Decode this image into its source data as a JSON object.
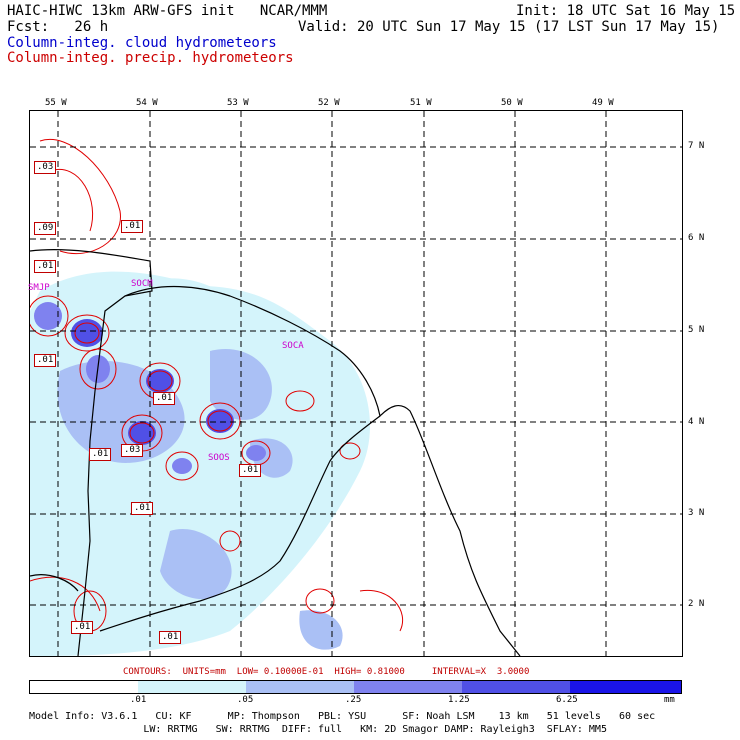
{
  "header": {
    "title_left": "HAIC-HIWC 13km ARW-GFS init   NCAR/MMM",
    "init": "Init: 18 UTC Sat 16 May 15",
    "fcst": "Fcst:   26 h",
    "valid": "Valid: 20 UTC Sun 17 May 15 (17 LST Sun 17 May 15)",
    "field1": "Column-integ. cloud hydrometeors",
    "field2": "Column-integ. precip. hydrometeors",
    "field1_color": "#0000cc",
    "field2_color": "#cc0000"
  },
  "map": {
    "lon_labels": [
      "55 W",
      "54 W",
      "53 W",
      "52 W",
      "51 W",
      "50 W",
      "49 W"
    ],
    "lat_labels": [
      "7 N",
      "6 N",
      "5 N",
      "4 N",
      "3 N",
      "2 N"
    ],
    "stations": [
      "SMJP",
      "SOCM",
      "SOCA",
      "SOOS"
    ],
    "contour_labels": [
      ".03",
      ".09",
      ".01",
      ".01",
      ".01",
      ".01",
      ".01",
      ".03",
      ".01",
      ".01",
      ".01",
      ".01"
    ]
  },
  "legend": {
    "contours_text": "CONTOURS:  UNITS=mm  LOW= 0.10000E-01  HIGH= 0.81000     INTERVAL=X  3.0000",
    "bar_labels": [
      ".01",
      ".05",
      ".25",
      "1.25",
      "6.25",
      "mm"
    ],
    "bar_colors": [
      "#ffffff",
      "#d4f4fb",
      "#aac0f5",
      "#7f82ef",
      "#5050e6",
      "#1a14e8"
    ]
  },
  "footer": {
    "line1": "Model Info: V3.6.1   CU: KF      MP: Thompson   PBL: YSU      SF: Noah LSM    13 km   51 levels   60 sec",
    "line2": "                   LW: RRTMG   SW: RRTMG  DIFF: full   KM: 2D Smagor DAMP: Rayleigh3  SFLAY: MM5"
  }
}
